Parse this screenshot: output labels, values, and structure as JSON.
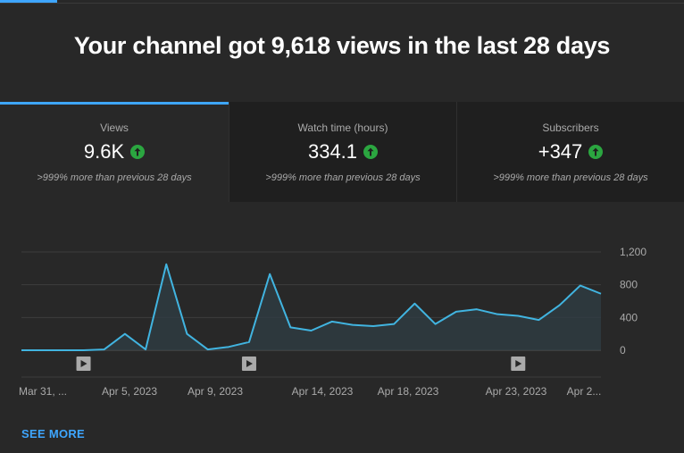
{
  "headline": "Your channel got 9,618 views in the last 28 days",
  "tabs": [
    {
      "label": "Views",
      "value": "9.6K",
      "trend_icon": "arrow-up-circle-icon",
      "compare": ">999% more than previous 28 days",
      "selected": true
    },
    {
      "label": "Watch time (hours)",
      "value": "334.1",
      "trend_icon": "arrow-up-circle-icon",
      "compare": ">999% more than previous 28 days",
      "selected": false
    },
    {
      "label": "Subscribers",
      "value": "+347",
      "trend_icon": "arrow-up-circle-icon",
      "compare": ">999% more than previous 28 days",
      "selected": false
    }
  ],
  "chart_data": {
    "type": "area",
    "x_tick_labels": [
      "Mar 31, ...",
      "Apr 5, 2023",
      "Apr 9, 2023",
      "Apr 14, 2023",
      "Apr 18, 2023",
      "Apr 23, 2023",
      "Apr 2..."
    ],
    "y_tick_labels": [
      "1,200",
      "800",
      "400",
      "0"
    ],
    "y_ticks": [
      1200,
      800,
      400,
      0
    ],
    "ylim": [
      0,
      1200
    ],
    "grid": true,
    "series": [
      {
        "values": [
          0,
          0,
          0,
          0,
          10,
          200,
          10,
          1050,
          200,
          10,
          40,
          100,
          930,
          280,
          240,
          350,
          310,
          295,
          320,
          570,
          320,
          470,
          500,
          440,
          420,
          370,
          550,
          790,
          690
        ]
      }
    ],
    "video_markers": [
      3,
      11,
      24
    ],
    "marker_icon": "play-icon"
  },
  "colors": {
    "accent": "#3ea6ff",
    "line": "#41b4e0",
    "up": "#2ba640",
    "background": "#282828"
  },
  "see_more": "SEE MORE"
}
